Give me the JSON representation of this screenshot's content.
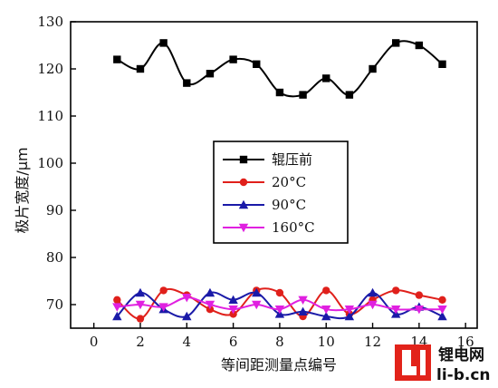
{
  "chart_data": {
    "type": "line",
    "xlabel": "等间距测量点编号",
    "ylabel": "极片宽度/μm",
    "xlim": [
      -1,
      16.5
    ],
    "ylim": [
      65,
      130
    ],
    "xticks": [
      0,
      2,
      4,
      6,
      8,
      10,
      12,
      14,
      16
    ],
    "yticks": [
      70,
      80,
      90,
      100,
      110,
      120,
      130
    ],
    "legend_position": "center",
    "grid": false,
    "x": [
      1,
      2,
      3,
      4,
      5,
      6,
      7,
      8,
      9,
      10,
      11,
      12,
      13,
      14,
      15
    ],
    "series": [
      {
        "name": "辊压前",
        "color": "#000000",
        "marker": "square",
        "values": [
          122,
          120,
          125.5,
          117,
          119,
          122,
          121,
          115,
          114.5,
          118,
          114.5,
          120,
          125.5,
          125,
          121
        ]
      },
      {
        "name": "20°C",
        "color": "#e0201b",
        "marker": "circle",
        "values": [
          71,
          67,
          73,
          72,
          69,
          68,
          73,
          72.5,
          67.5,
          73,
          68,
          71,
          73,
          72,
          71
        ]
      },
      {
        "name": "90°C",
        "color": "#1a1aa8",
        "marker": "triangle-up",
        "values": [
          67.5,
          72.5,
          69,
          67.5,
          72.5,
          71,
          72.5,
          68,
          68.5,
          67.5,
          67.5,
          72.5,
          68,
          69.5,
          67.5
        ]
      },
      {
        "name": "160°C",
        "color": "#e020e0",
        "marker": "triangle-down",
        "values": [
          69.5,
          70,
          69.5,
          71.5,
          70,
          69,
          70,
          69,
          71,
          69,
          69,
          70,
          69,
          69,
          69
        ]
      }
    ]
  },
  "watermark": {
    "logo_letters": "Li",
    "site_name": "锂电网",
    "site_url": "li-b.cn",
    "logo_color": "#e2231a"
  }
}
